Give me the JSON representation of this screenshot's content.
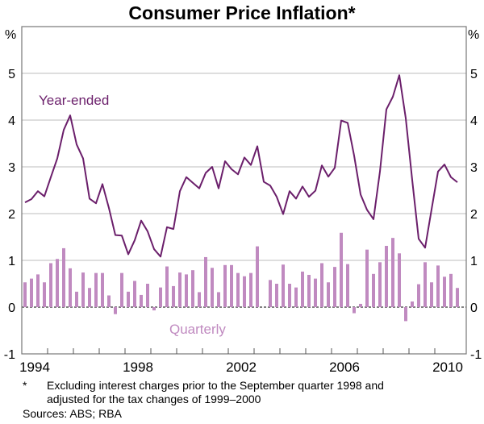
{
  "chart_data": {
    "type": "bar+line",
    "title": "Consumer Price Inflation*",
    "ylabel_left": "%",
    "ylabel_right": "%",
    "ylim": [
      -1,
      6
    ],
    "yticks": [
      -1,
      0,
      1,
      2,
      3,
      4,
      5
    ],
    "x_start": "1994 Q1",
    "x_end": "2010 Q4",
    "xticks": [
      "1994",
      "1998",
      "2002",
      "2006",
      "2010"
    ],
    "grid": true,
    "series": [
      {
        "name": "Year-ended",
        "type": "line",
        "color": "#6b1f6b",
        "values": [
          2.24,
          2.31,
          2.48,
          2.37,
          2.78,
          3.18,
          3.79,
          4.1,
          3.48,
          3.18,
          2.32,
          2.22,
          2.63,
          2.12,
          1.54,
          1.53,
          1.13,
          1.43,
          1.85,
          1.62,
          1.24,
          1.08,
          1.71,
          1.67,
          2.48,
          2.78,
          2.66,
          2.54,
          2.87,
          3.0,
          2.54,
          3.12,
          2.95,
          2.84,
          3.2,
          3.04,
          3.44,
          2.68,
          2.6,
          2.36,
          1.99,
          2.48,
          2.32,
          2.58,
          2.36,
          2.49,
          3.03,
          2.79,
          2.98,
          3.99,
          3.94,
          3.24,
          2.41,
          2.08,
          1.88,
          2.9,
          4.23,
          4.5,
          4.96,
          4.04,
          2.72,
          1.46,
          1.27,
          2.09,
          2.9,
          3.05,
          2.78,
          2.67
        ]
      },
      {
        "name": "Quarterly",
        "type": "bar",
        "color": "#c08ac0",
        "values": [
          0.53,
          0.61,
          0.7,
          0.53,
          0.94,
          1.03,
          1.26,
          0.83,
          0.33,
          0.74,
          0.41,
          0.73,
          0.73,
          0.25,
          -0.15,
          0.73,
          0.33,
          0.56,
          0.26,
          0.5,
          -0.07,
          0.42,
          0.87,
          0.45,
          0.74,
          0.7,
          0.79,
          0.32,
          1.07,
          0.84,
          0.32,
          0.9,
          0.9,
          0.73,
          0.66,
          0.73,
          1.3,
          0.0,
          0.58,
          0.5,
          0.91,
          0.5,
          0.42,
          0.76,
          0.69,
          0.61,
          0.94,
          0.53,
          0.86,
          1.59,
          0.92,
          -0.13,
          0.07,
          1.23,
          0.71,
          0.96,
          1.31,
          1.48,
          1.15,
          -0.3,
          0.12,
          0.49,
          0.96,
          0.53,
          0.89,
          0.65,
          0.71,
          0.41
        ]
      }
    ]
  },
  "footnote": {
    "marker": "*",
    "line1": "Excluding interest charges prior to the September quarter 1998 and",
    "line2": "adjusted for the tax changes of 1999–2000",
    "sources": "Sources: ABS; RBA"
  }
}
